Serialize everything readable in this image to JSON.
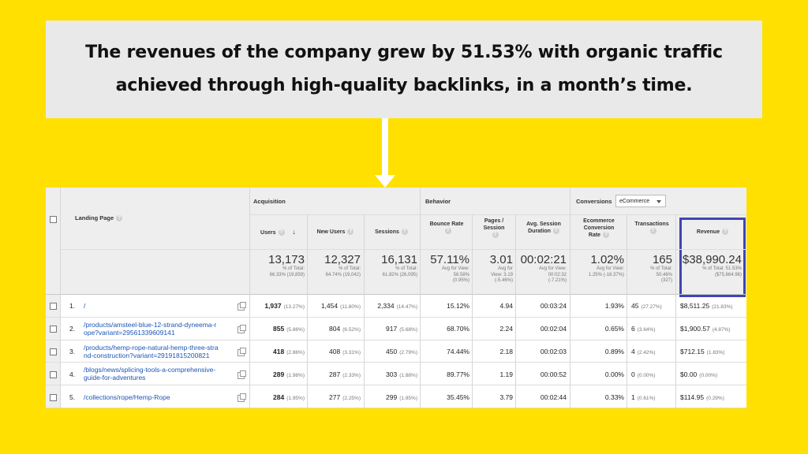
{
  "headline": {
    "line1": "The revenues of the company grew by 51.53% with organic traffic",
    "line2": "achieved through high-quality backlinks, in a month’s time."
  },
  "report": {
    "landing_page_label": "Landing Page",
    "groups": {
      "acquisition": "Acquisition",
      "behavior": "Behavior",
      "conversions": "Conversions"
    },
    "conversions_dropdown": "eCommerce",
    "columns": {
      "users": "Users",
      "new_users": "New Users",
      "sessions": "Sessions",
      "bounce_rate": "Bounce Rate",
      "pages_session_1": "Pages /",
      "pages_session_2": "Session",
      "avg_duration_1": "Avg. Session",
      "avg_duration_2": "Duration",
      "ecom_1": "Ecommerce",
      "ecom_2": "Conversion",
      "ecom_3": "Rate",
      "transactions": "Transactions",
      "revenue": "Revenue"
    },
    "totals": {
      "users": {
        "value": "13,173",
        "sub1": "% of Total:",
        "sub2": "66.33% (19,859)"
      },
      "new_users": {
        "value": "12,327",
        "sub1": "% of Total:",
        "sub2": "64.74% (19,042)"
      },
      "sessions": {
        "value": "16,131",
        "sub1": "% of Total:",
        "sub2": "61.82% (26,095)"
      },
      "bounce_rate": {
        "value": "57.11%",
        "sub1": "Avg for View:",
        "sub2": "56.58%",
        "sub3": "(0.95%)"
      },
      "pages_session": {
        "value": "3.01",
        "sub1": "Avg for",
        "sub2": "View: 3.19",
        "sub3": "(-5.46%)"
      },
      "avg_duration": {
        "value": "00:02:21",
        "sub1": "Avg for View:",
        "sub2": "00:02:32",
        "sub3": "(-7.21%)"
      },
      "ecom_rate": {
        "value": "1.02%",
        "sub1": "Avg for View:",
        "sub2": "1.25% (-18.37%)"
      },
      "transactions": {
        "value": "165",
        "sub1": "% of Total:",
        "sub2": "50.46%",
        "sub3": "(327)"
      },
      "revenue": {
        "value": "$38,990.24",
        "sub1": "% of Total: 51.53%",
        "sub2": "($75,664.96)"
      }
    },
    "rows": [
      {
        "index": "1.",
        "page_line1": "/",
        "page_line2": "",
        "users": "1,937",
        "users_pct": "(13.27%)",
        "new_users": "1,454",
        "new_users_pct": "(11.80%)",
        "sessions": "2,334",
        "sessions_pct": "(14.47%)",
        "bounce": "15.12%",
        "pages": "4.94",
        "duration": "00:03:24",
        "ecom": "1.93%",
        "trans": "45",
        "trans_pct": "(27.27%)",
        "revenue": "$8,511.25",
        "revenue_pct": "(21.83%)"
      },
      {
        "index": "2.",
        "page_line1": "/products/amsteel-blue-12-strand-dyneema-r",
        "page_line2": "ope?variant=29561339609141",
        "users": "855",
        "users_pct": "(5.86%)",
        "new_users": "804",
        "new_users_pct": "(6.52%)",
        "sessions": "917",
        "sessions_pct": "(5.68%)",
        "bounce": "68.70%",
        "pages": "2.24",
        "duration": "00:02:04",
        "ecom": "0.65%",
        "trans": "6",
        "trans_pct": "(3.64%)",
        "revenue": "$1,900.57",
        "revenue_pct": "(4.87%)"
      },
      {
        "index": "3.",
        "page_line1": "/products/hemp-rope-natural-hemp-three-stra",
        "page_line2": "nd-construction?variant=29191815200821",
        "users": "418",
        "users_pct": "(2.86%)",
        "new_users": "408",
        "new_users_pct": "(3.31%)",
        "sessions": "450",
        "sessions_pct": "(2.79%)",
        "bounce": "74.44%",
        "pages": "2.18",
        "duration": "00:02:03",
        "ecom": "0.89%",
        "trans": "4",
        "trans_pct": "(2.42%)",
        "revenue": "$712.15",
        "revenue_pct": "(1.83%)"
      },
      {
        "index": "4.",
        "page_line1": "/blogs/news/splicing-tools-a-comprehensive-",
        "page_line2": "guide-for-adventures",
        "users": "289",
        "users_pct": "(1.98%)",
        "new_users": "287",
        "new_users_pct": "(2.33%)",
        "sessions": "303",
        "sessions_pct": "(1.88%)",
        "bounce": "89.77%",
        "pages": "1.19",
        "duration": "00:00:52",
        "ecom": "0.00%",
        "trans": "0",
        "trans_pct": "(0.00%)",
        "revenue": "$0.00",
        "revenue_pct": "(0.00%)"
      },
      {
        "index": "5.",
        "page_line1": "/collections/rope/Hemp-Rope",
        "page_line2": "",
        "users": "284",
        "users_pct": "(1.95%)",
        "new_users": "277",
        "new_users_pct": "(2.25%)",
        "sessions": "299",
        "sessions_pct": "(1.85%)",
        "bounce": "35.45%",
        "pages": "3.79",
        "duration": "00:02:44",
        "ecom": "0.33%",
        "trans": "1",
        "trans_pct": "(0.61%)",
        "revenue": "$114.95",
        "revenue_pct": "(0.29%)"
      }
    ],
    "colors": {
      "background": "#FFE000",
      "panel": "#E9E9E9",
      "link": "#1A55B8",
      "highlight": "#4045B4"
    }
  }
}
